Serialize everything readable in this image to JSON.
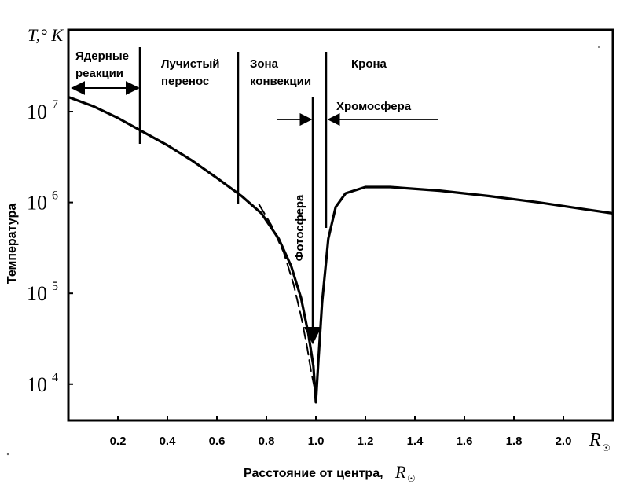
{
  "chart_data": {
    "type": "line",
    "title": "",
    "ylabel": "Температура",
    "ylabel_top": "T,° K",
    "xlabel": "Расстояние от центра,",
    "x_unit_label": "R",
    "x_unit_symbol": "☉",
    "xlim": [
      0,
      2.2
    ],
    "ylim_log10": [
      3.6,
      7.9
    ],
    "y_scale": "log",
    "grid": false,
    "x_ticks": [
      {
        "value": 0.2,
        "label": "0.2"
      },
      {
        "value": 0.4,
        "label": "0.4"
      },
      {
        "value": 0.6,
        "label": "0.6"
      },
      {
        "value": 0.8,
        "label": "0.8"
      },
      {
        "value": 1.0,
        "label": "1.0"
      },
      {
        "value": 1.2,
        "label": "1.2"
      },
      {
        "value": 1.4,
        "label": "1.4"
      },
      {
        "value": 1.6,
        "label": "1.6"
      },
      {
        "value": 1.8,
        "label": "1.8"
      },
      {
        "value": 2.0,
        "label": "2.0"
      }
    ],
    "y_ticks": [
      {
        "exp": 7,
        "base": "10",
        "sup": "7"
      },
      {
        "exp": 6,
        "base": "10",
        "sup": "6"
      },
      {
        "exp": 5,
        "base": "10",
        "sup": "5"
      },
      {
        "exp": 4,
        "base": "10",
        "sup": "4"
      }
    ],
    "series": [
      {
        "style": "solid",
        "x": [
          0.0,
          0.1,
          0.2,
          0.3,
          0.4,
          0.5,
          0.6,
          0.7,
          0.78,
          0.85,
          0.9,
          0.94,
          0.97,
          0.99,
          1.0,
          1.01,
          1.025,
          1.05,
          1.08,
          1.12,
          1.2,
          1.3,
          1.5,
          1.7,
          1.9,
          2.1,
          2.2
        ],
        "log10_T": [
          7.16,
          7.06,
          6.93,
          6.78,
          6.63,
          6.46,
          6.27,
          6.07,
          5.88,
          5.6,
          5.3,
          4.95,
          4.55,
          4.2,
          3.8,
          4.25,
          4.9,
          5.6,
          5.95,
          6.1,
          6.17,
          6.17,
          6.13,
          6.07,
          6.0,
          5.92,
          5.88
        ]
      },
      {
        "style": "dashed",
        "x": [
          0.77,
          0.82,
          0.87,
          0.91,
          0.94,
          0.965,
          0.98,
          0.995
        ],
        "log10_T": [
          5.98,
          5.75,
          5.45,
          5.1,
          4.75,
          4.4,
          4.15,
          3.95
        ]
      }
    ],
    "annotations": {
      "nuclear": {
        "label_line1": "Ядерные",
        "label_line2": "реакции",
        "boundary_x": 0.0,
        "marker_x": 0.3
      },
      "radiative": {
        "label_line1": "Лучистый",
        "label_line2": "перенос",
        "marker_x": 0.7
      },
      "convection": {
        "label_line1": "Зона",
        "label_line2": "конвекции"
      },
      "corona": {
        "label": "Крона",
        "marker_x": 1.05
      },
      "chromosphere": {
        "label": "Хромосфера",
        "from_x": 0.82,
        "to_x": 1.5
      },
      "photosphere": {
        "label": "Фотосфера",
        "marker_x": 1.0
      }
    }
  }
}
